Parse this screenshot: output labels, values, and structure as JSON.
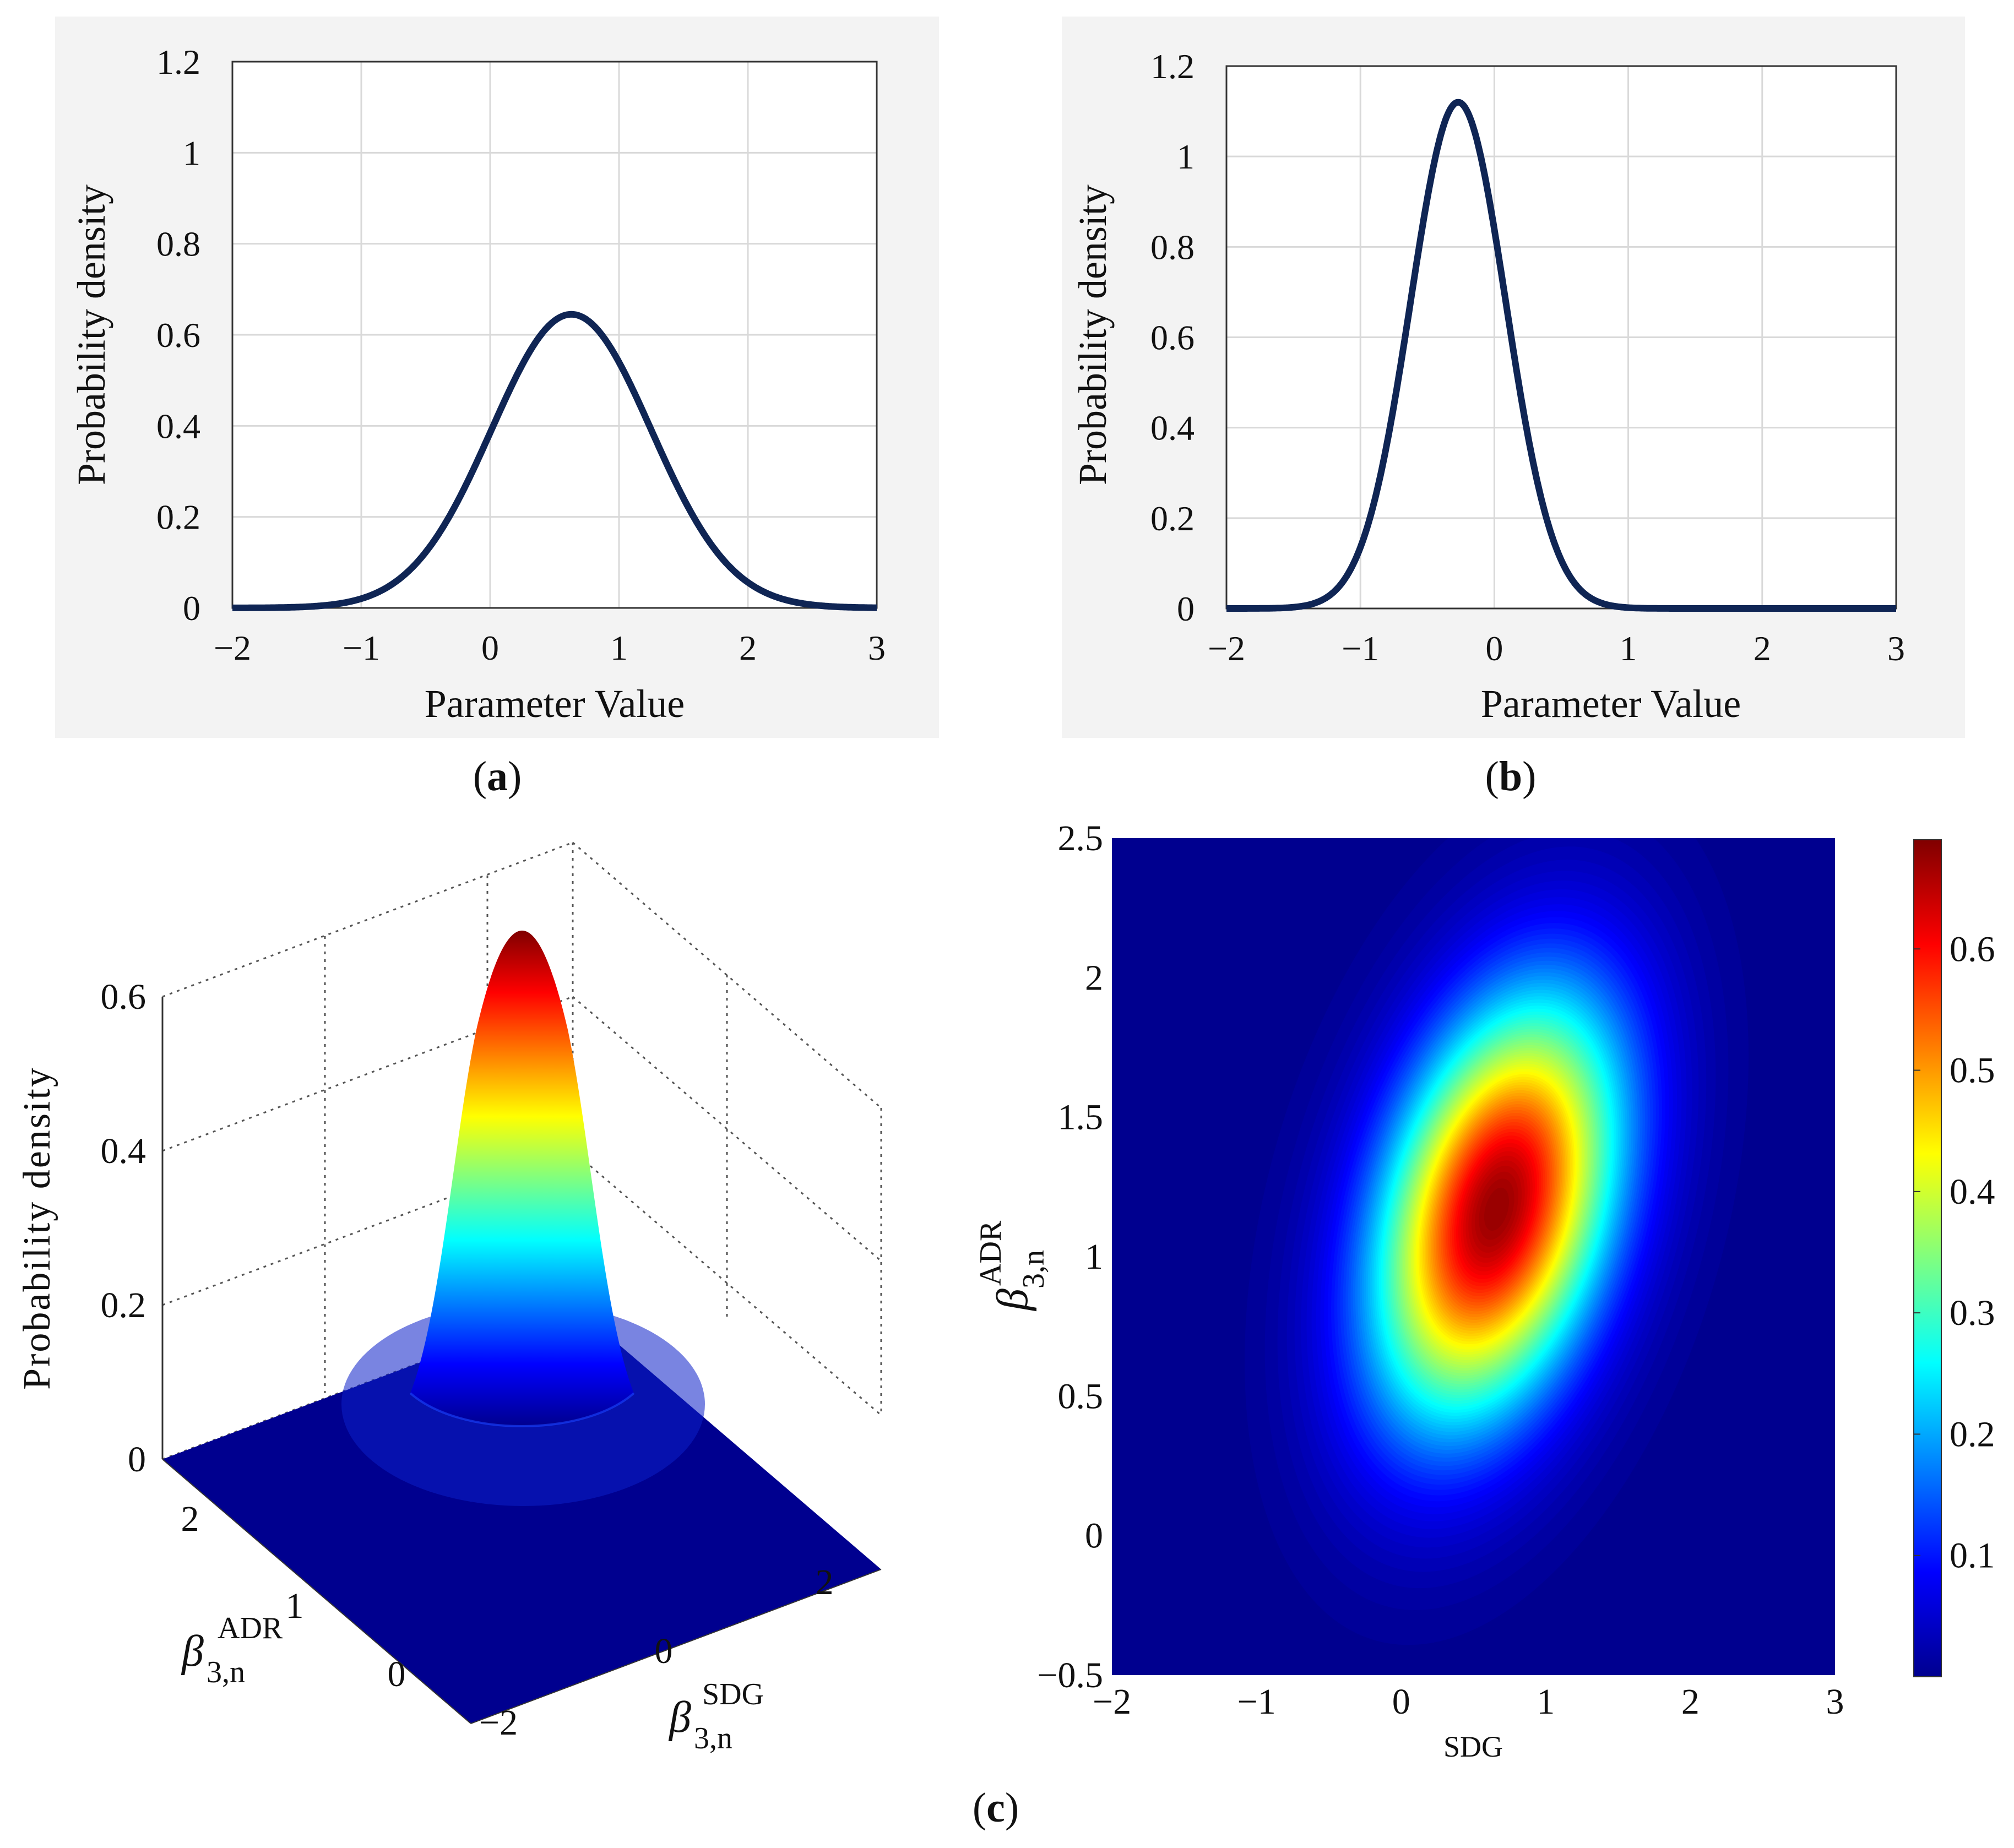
{
  "colors": {
    "panel_bg": "#f3f3f3",
    "grid": "#d9d9d9",
    "axis": "#333333",
    "curve": "#0f2554",
    "surface_low": "#00008f"
  },
  "chart_data": [
    {
      "type": "line",
      "panel_label": "(a)",
      "title": "",
      "xlabel": "Parameter Value",
      "ylabel": "Probability density",
      "xlim": [
        -2,
        3
      ],
      "ylim": [
        0,
        1.2
      ],
      "xticks": [
        "−2",
        "−1",
        "0",
        "1",
        "2",
        "3"
      ],
      "yticks": [
        "0",
        "0.2",
        "0.4",
        "0.6",
        "0.8",
        "1",
        "1.2"
      ],
      "grid": true,
      "series": [
        {
          "name": "density",
          "distribution": "normal",
          "mean": 0.63,
          "sd": 0.62,
          "peak": 0.645
        }
      ]
    },
    {
      "type": "line",
      "panel_label": "(b)",
      "title": "",
      "xlabel": "Parameter Value",
      "ylabel": "Probability density",
      "xlim": [
        -2,
        3
      ],
      "ylim": [
        0,
        1.2
      ],
      "xticks": [
        "−2",
        "−1",
        "0",
        "1",
        "2",
        "3"
      ],
      "yticks": [
        "0",
        "0.2",
        "0.4",
        "0.6",
        "0.8",
        "1",
        "1.2"
      ],
      "grid": true,
      "series": [
        {
          "name": "density",
          "distribution": "normal",
          "mean": -0.27,
          "sd": 0.355,
          "peak": 1.12
        }
      ]
    },
    {
      "type": "surface",
      "panel_label": "(c)",
      "zlabel": "Probability density",
      "xlabel_base": "β",
      "xlabel_sub": "3,n",
      "xlabel_sup": "SDG",
      "ylabel_base": "β",
      "ylabel_sub": "3,n",
      "ylabel_sup": "ADR",
      "zticks": [
        "0",
        "0.2",
        "0.4",
        "0.6"
      ],
      "xticks": [
        "−2",
        "0",
        "2"
      ],
      "yticks": [
        "0",
        "1",
        "2"
      ],
      "peak": 0.68
    },
    {
      "type": "heatmap",
      "xlabel": "SDG",
      "ylabel_base": "β",
      "ylabel_sub": "3,n",
      "ylabel_sup": "ADR",
      "xlim": [
        -2,
        3
      ],
      "ylim": [
        -0.5,
        2.5
      ],
      "xticks": [
        "−2",
        "−1",
        "0",
        "1",
        "2",
        "3"
      ],
      "yticks": [
        "−0.5",
        "0",
        "0.5",
        "1",
        "1.5",
        "2",
        "2.5"
      ],
      "colorbar_ticks": [
        "0.1",
        "0.2",
        "0.3",
        "0.4",
        "0.5",
        "0.6"
      ],
      "colorbar_range": [
        0,
        0.69
      ],
      "center": {
        "x": 0.66,
        "y": 1.17
      },
      "sx": 0.58,
      "sy": 0.52,
      "rho": 0.35,
      "peak": 0.68
    }
  ]
}
